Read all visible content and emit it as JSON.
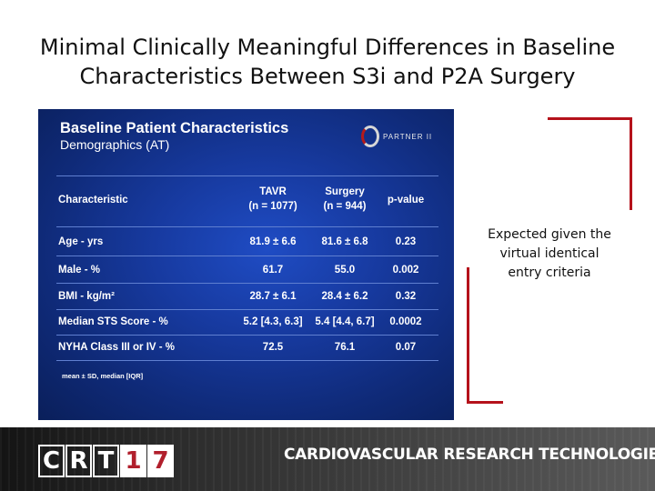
{
  "slide": {
    "title_line1": "Minimal Clinically Meaningful Differences in Baseline",
    "title_line2": "Characteristics Between S3i and P2A Surgery"
  },
  "table_image": {
    "title": "Baseline Patient Characteristics",
    "subtitle": "Demographics (AT)",
    "logo_text": "PARTNER II",
    "headers": {
      "characteristic": "Characteristic",
      "tavr": "TAVR",
      "tavr_n": "(n = 1077)",
      "surgery": "Surgery",
      "surgery_n": "(n = 944)",
      "pvalue": "p-value"
    },
    "rows": [
      {
        "label": "Age - yrs",
        "tavr": "81.9 ± 6.6",
        "surgery": "81.6 ± 6.8",
        "p": "0.23"
      },
      {
        "label": "Male - %",
        "tavr": "61.7",
        "surgery": "55.0",
        "p": "0.002"
      },
      {
        "label": "BMI - kg/m²",
        "tavr": "28.7 ± 6.1",
        "surgery": "28.4 ± 6.2",
        "p": "0.32"
      },
      {
        "label": "Median STS Score - %",
        "tavr": "5.2 [4.3, 6.3]",
        "surgery": "5.4 [4.4, 6.7]",
        "p": "0.0002"
      },
      {
        "label": "NYHA Class III or IV - %",
        "tavr": "72.5",
        "surgery": "76.1",
        "p": "0.07"
      }
    ],
    "footnote": "mean ± SD, median [IQR]"
  },
  "note": {
    "line1": "Expected given the",
    "line2": "virtual identical",
    "line3": "entry criteria"
  },
  "banner": {
    "logo_letters": [
      "C",
      "R",
      "T",
      "1",
      "7"
    ],
    "text": "CARDIOVASCULAR RESEARCH TECHNOLOGIES"
  },
  "colors": {
    "bracket": "#b5121b",
    "panel": "#173aa0",
    "logo_accent": "#b11f2c"
  }
}
